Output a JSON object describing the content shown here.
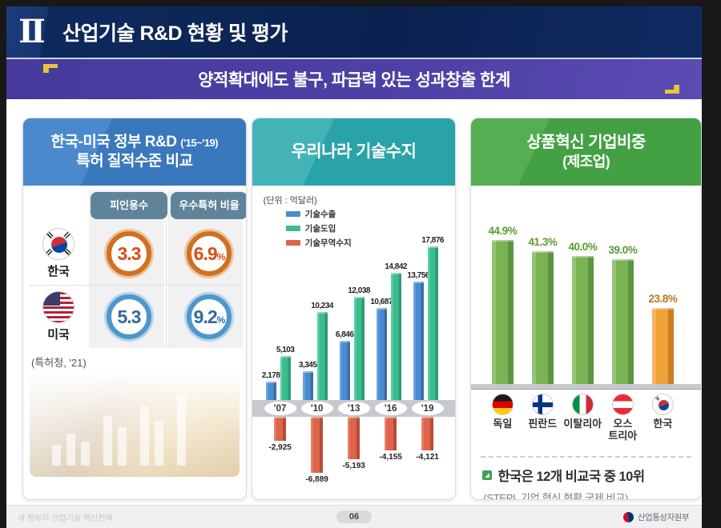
{
  "header": {
    "numeral": "Ⅱ",
    "title": "산업기술 R&D 현황 및 평가"
  },
  "banner": {
    "text": "양적확대에도 불구, 파급력 있는 성과창출 한계"
  },
  "left_panel": {
    "title_line1": "한국-미국 정부 R&D",
    "title_period": "('15~'19)",
    "title_line2": "특허 질적수준 비교",
    "columns": [
      "피인용수",
      "우수특허 비율"
    ],
    "rows": [
      {
        "country": "한국",
        "citation": "3.3",
        "citation_unit": "",
        "excellent": "6.9",
        "excellent_unit": "%"
      },
      {
        "country": "미국",
        "citation": "5.3",
        "citation_unit": "",
        "excellent": "9.2",
        "excellent_unit": "%"
      }
    ],
    "source": "(특허청, '21)"
  },
  "middle_panel": {
    "title": "우리나라 기술수지",
    "unit": "(단위 : 억달러)"
  },
  "right_panel": {
    "title_line1": "상품혁신 기업비중",
    "title_line2": "(제조업)",
    "note": "한국은 12개 비교국 중 10위",
    "note_source": "(STEPI, 기업 혁신 현황 국제 비교)"
  },
  "footer": {
    "left": "새 정부의 산업기술 혁신전략",
    "page": "06",
    "ministry": "산업통상자원부"
  },
  "chart_data": [
    {
      "type": "bar",
      "title": "우리나라 기술수지",
      "unit": "억달러",
      "categories": [
        "'07",
        "'10",
        "'13",
        "'16",
        "'19"
      ],
      "legend_position": "top-left",
      "series": [
        {
          "name": "기술수출",
          "color": "#4a8cd3",
          "css": "bar-blue",
          "values": [
            2178,
            3345,
            6846,
            10687,
            13756
          ],
          "labels": [
            "2,178",
            "3,345",
            "6,846",
            "10,687",
            "13,756"
          ]
        },
        {
          "name": "기술도입",
          "color": "#3cbd8e",
          "css": "bar-green",
          "values": [
            5103,
            10234,
            12038,
            14842,
            17876
          ],
          "labels": [
            "5,103",
            "10,234",
            "12,038",
            "14,842",
            "17,876"
          ]
        },
        {
          "name": "기술무역수지",
          "color": "#dd6349",
          "css": "bar-red",
          "values": [
            -2925,
            -6889,
            -5193,
            -4155,
            -4121
          ],
          "labels": [
            "-2,925",
            "-6,889",
            "-5,193",
            "-4,155",
            "-4,121"
          ]
        }
      ],
      "ylim": [
        -6889,
        17876
      ],
      "grid": false
    },
    {
      "type": "bar",
      "title": "상품혁신 기업비중(제조업)",
      "categories": [
        "독일",
        "핀란드",
        "이탈리아",
        "오스트리아",
        "한국"
      ],
      "display_labels": [
        "독일",
        "핀란드",
        "이탈리아",
        "오스\n트리아",
        "한국"
      ],
      "values": [
        44.9,
        41.3,
        40.0,
        39.0,
        23.8
      ],
      "labels": [
        "44.9%",
        "41.3%",
        "40.0%",
        "39.0%",
        "23.8%"
      ],
      "bar_css": [
        "pib-green",
        "pib-green",
        "pib-green",
        "pib-green",
        "pib-orange"
      ],
      "label_css": [
        "green",
        "green",
        "green",
        "green",
        "orange"
      ],
      "flags": [
        "flag-germany",
        "flag-finland",
        "flag-italy",
        "flag-austria",
        "flag-korea-sm"
      ],
      "ylim": [
        0,
        50
      ],
      "grid": false
    }
  ]
}
